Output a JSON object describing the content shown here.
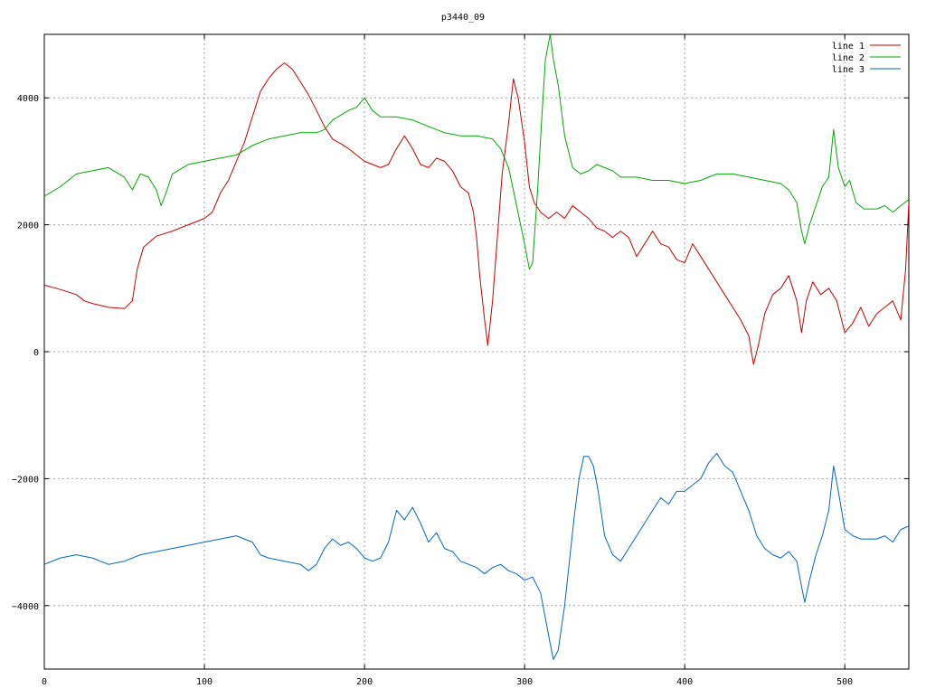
{
  "chart_data": {
    "type": "line",
    "title": "p3440_09",
    "xlabel": "",
    "ylabel": "",
    "xlim": [
      0,
      540
    ],
    "ylim": [
      -5000,
      5000
    ],
    "x_ticks": [
      0,
      100,
      200,
      300,
      400,
      500
    ],
    "y_ticks": [
      4000,
      2000,
      0,
      -2000,
      -4000
    ],
    "grid": true,
    "legend_position": "top-right",
    "series": [
      {
        "name": "line 1",
        "color": "#cc0000",
        "points": [
          [
            0,
            1050
          ],
          [
            10,
            980
          ],
          [
            20,
            900
          ],
          [
            25,
            800
          ],
          [
            30,
            760
          ],
          [
            40,
            700
          ],
          [
            50,
            680
          ],
          [
            55,
            800
          ],
          [
            58,
            1300
          ],
          [
            62,
            1650
          ],
          [
            70,
            1820
          ],
          [
            80,
            1900
          ],
          [
            90,
            2000
          ],
          [
            100,
            2100
          ],
          [
            105,
            2200
          ],
          [
            110,
            2500
          ],
          [
            115,
            2700
          ],
          [
            120,
            3000
          ],
          [
            125,
            3300
          ],
          [
            130,
            3700
          ],
          [
            135,
            4100
          ],
          [
            140,
            4300
          ],
          [
            145,
            4450
          ],
          [
            150,
            4550
          ],
          [
            155,
            4450
          ],
          [
            160,
            4250
          ],
          [
            165,
            4050
          ],
          [
            170,
            3800
          ],
          [
            175,
            3550
          ],
          [
            180,
            3350
          ],
          [
            185,
            3280
          ],
          [
            190,
            3200
          ],
          [
            195,
            3100
          ],
          [
            200,
            3000
          ],
          [
            205,
            2950
          ],
          [
            210,
            2900
          ],
          [
            215,
            2950
          ],
          [
            220,
            3200
          ],
          [
            225,
            3400
          ],
          [
            230,
            3200
          ],
          [
            235,
            2950
          ],
          [
            240,
            2900
          ],
          [
            245,
            3050
          ],
          [
            250,
            3000
          ],
          [
            255,
            2850
          ],
          [
            260,
            2600
          ],
          [
            265,
            2500
          ],
          [
            268,
            2200
          ],
          [
            270,
            1800
          ],
          [
            272,
            1200
          ],
          [
            275,
            500
          ],
          [
            277,
            100
          ],
          [
            280,
            800
          ],
          [
            283,
            1800
          ],
          [
            286,
            2800
          ],
          [
            290,
            3600
          ],
          [
            293,
            4300
          ],
          [
            296,
            4000
          ],
          [
            300,
            3300
          ],
          [
            303,
            2600
          ],
          [
            306,
            2350
          ],
          [
            310,
            2200
          ],
          [
            315,
            2100
          ],
          [
            320,
            2200
          ],
          [
            325,
            2100
          ],
          [
            330,
            2300
          ],
          [
            335,
            2200
          ],
          [
            340,
            2100
          ],
          [
            345,
            1950
          ],
          [
            350,
            1900
          ],
          [
            355,
            1800
          ],
          [
            360,
            1900
          ],
          [
            365,
            1800
          ],
          [
            370,
            1500
          ],
          [
            375,
            1700
          ],
          [
            380,
            1900
          ],
          [
            385,
            1700
          ],
          [
            390,
            1650
          ],
          [
            395,
            1450
          ],
          [
            400,
            1400
          ],
          [
            405,
            1700
          ],
          [
            410,
            1500
          ],
          [
            415,
            1300
          ],
          [
            420,
            1100
          ],
          [
            425,
            900
          ],
          [
            430,
            700
          ],
          [
            435,
            500
          ],
          [
            440,
            250
          ],
          [
            443,
            -200
          ],
          [
            446,
            100
          ],
          [
            450,
            600
          ],
          [
            455,
            900
          ],
          [
            460,
            1000
          ],
          [
            465,
            1200
          ],
          [
            470,
            800
          ],
          [
            473,
            300
          ],
          [
            476,
            800
          ],
          [
            480,
            1100
          ],
          [
            485,
            900
          ],
          [
            490,
            1000
          ],
          [
            495,
            800
          ],
          [
            500,
            300
          ],
          [
            505,
            450
          ],
          [
            510,
            700
          ],
          [
            515,
            400
          ],
          [
            520,
            600
          ],
          [
            525,
            700
          ],
          [
            530,
            800
          ],
          [
            535,
            500
          ],
          [
            538,
            1300
          ],
          [
            540,
            2350
          ]
        ]
      },
      {
        "name": "line 2",
        "color": "#00aa00",
        "points": [
          [
            0,
            2450
          ],
          [
            10,
            2600
          ],
          [
            20,
            2800
          ],
          [
            30,
            2850
          ],
          [
            40,
            2900
          ],
          [
            50,
            2750
          ],
          [
            55,
            2550
          ],
          [
            60,
            2800
          ],
          [
            65,
            2750
          ],
          [
            70,
            2550
          ],
          [
            73,
            2300
          ],
          [
            76,
            2500
          ],
          [
            80,
            2800
          ],
          [
            90,
            2950
          ],
          [
            100,
            3000
          ],
          [
            110,
            3050
          ],
          [
            120,
            3100
          ],
          [
            130,
            3250
          ],
          [
            140,
            3350
          ],
          [
            150,
            3400
          ],
          [
            160,
            3450
          ],
          [
            170,
            3450
          ],
          [
            175,
            3500
          ],
          [
            180,
            3650
          ],
          [
            190,
            3800
          ],
          [
            195,
            3850
          ],
          [
            200,
            4000
          ],
          [
            205,
            3800
          ],
          [
            210,
            3700
          ],
          [
            220,
            3700
          ],
          [
            230,
            3650
          ],
          [
            240,
            3550
          ],
          [
            250,
            3450
          ],
          [
            260,
            3400
          ],
          [
            270,
            3400
          ],
          [
            280,
            3350
          ],
          [
            285,
            3200
          ],
          [
            290,
            2900
          ],
          [
            295,
            2300
          ],
          [
            300,
            1700
          ],
          [
            303,
            1300
          ],
          [
            305,
            1400
          ],
          [
            308,
            2500
          ],
          [
            311,
            3800
          ],
          [
            313,
            4600
          ],
          [
            316,
            5000
          ],
          [
            318,
            4600
          ],
          [
            321,
            4200
          ],
          [
            325,
            3400
          ],
          [
            330,
            2900
          ],
          [
            335,
            2800
          ],
          [
            340,
            2850
          ],
          [
            345,
            2950
          ],
          [
            350,
            2900
          ],
          [
            355,
            2850
          ],
          [
            360,
            2750
          ],
          [
            370,
            2750
          ],
          [
            380,
            2700
          ],
          [
            390,
            2700
          ],
          [
            400,
            2650
          ],
          [
            410,
            2700
          ],
          [
            420,
            2800
          ],
          [
            430,
            2800
          ],
          [
            440,
            2750
          ],
          [
            450,
            2700
          ],
          [
            460,
            2650
          ],
          [
            465,
            2550
          ],
          [
            470,
            2350
          ],
          [
            473,
            1900
          ],
          [
            475,
            1700
          ],
          [
            478,
            2000
          ],
          [
            482,
            2300
          ],
          [
            486,
            2600
          ],
          [
            490,
            2750
          ],
          [
            493,
            3500
          ],
          [
            496,
            2900
          ],
          [
            500,
            2600
          ],
          [
            503,
            2700
          ],
          [
            507,
            2350
          ],
          [
            512,
            2250
          ],
          [
            520,
            2250
          ],
          [
            525,
            2300
          ],
          [
            530,
            2200
          ],
          [
            535,
            2300
          ],
          [
            540,
            2400
          ]
        ]
      },
      {
        "name": "line 3",
        "color": "#0066cc",
        "points": [
          [
            0,
            -3350
          ],
          [
            10,
            -3250
          ],
          [
            20,
            -3200
          ],
          [
            30,
            -3250
          ],
          [
            40,
            -3350
          ],
          [
            50,
            -3300
          ],
          [
            60,
            -3200
          ],
          [
            70,
            -3150
          ],
          [
            80,
            -3100
          ],
          [
            90,
            -3050
          ],
          [
            100,
            -3000
          ],
          [
            110,
            -2950
          ],
          [
            120,
            -2900
          ],
          [
            130,
            -3000
          ],
          [
            135,
            -3200
          ],
          [
            140,
            -3250
          ],
          [
            150,
            -3300
          ],
          [
            160,
            -3350
          ],
          [
            165,
            -3450
          ],
          [
            170,
            -3350
          ],
          [
            175,
            -3100
          ],
          [
            180,
            -2950
          ],
          [
            185,
            -3050
          ],
          [
            190,
            -3000
          ],
          [
            195,
            -3100
          ],
          [
            200,
            -3250
          ],
          [
            205,
            -3300
          ],
          [
            210,
            -3250
          ],
          [
            215,
            -3000
          ],
          [
            220,
            -2500
          ],
          [
            225,
            -2650
          ],
          [
            230,
            -2450
          ],
          [
            235,
            -2700
          ],
          [
            240,
            -3000
          ],
          [
            245,
            -2850
          ],
          [
            250,
            -3100
          ],
          [
            255,
            -3150
          ],
          [
            260,
            -3300
          ],
          [
            265,
            -3350
          ],
          [
            270,
            -3400
          ],
          [
            275,
            -3500
          ],
          [
            280,
            -3400
          ],
          [
            285,
            -3350
          ],
          [
            290,
            -3450
          ],
          [
            295,
            -3500
          ],
          [
            300,
            -3600
          ],
          [
            305,
            -3550
          ],
          [
            310,
            -3800
          ],
          [
            313,
            -4200
          ],
          [
            316,
            -4600
          ],
          [
            318,
            -4850
          ],
          [
            321,
            -4700
          ],
          [
            325,
            -4000
          ],
          [
            328,
            -3300
          ],
          [
            331,
            -2600
          ],
          [
            334,
            -2000
          ],
          [
            337,
            -1650
          ],
          [
            340,
            -1650
          ],
          [
            343,
            -1800
          ],
          [
            346,
            -2200
          ],
          [
            350,
            -2900
          ],
          [
            355,
            -3200
          ],
          [
            360,
            -3300
          ],
          [
            365,
            -3100
          ],
          [
            370,
            -2900
          ],
          [
            375,
            -2700
          ],
          [
            380,
            -2500
          ],
          [
            385,
            -2300
          ],
          [
            390,
            -2400
          ],
          [
            395,
            -2200
          ],
          [
            400,
            -2200
          ],
          [
            405,
            -2100
          ],
          [
            410,
            -2000
          ],
          [
            415,
            -1750
          ],
          [
            420,
            -1600
          ],
          [
            425,
            -1800
          ],
          [
            430,
            -1900
          ],
          [
            435,
            -2200
          ],
          [
            440,
            -2500
          ],
          [
            445,
            -2900
          ],
          [
            450,
            -3100
          ],
          [
            455,
            -3200
          ],
          [
            460,
            -3250
          ],
          [
            465,
            -3150
          ],
          [
            470,
            -3300
          ],
          [
            473,
            -3700
          ],
          [
            475,
            -3950
          ],
          [
            478,
            -3600
          ],
          [
            482,
            -3200
          ],
          [
            486,
            -2900
          ],
          [
            490,
            -2500
          ],
          [
            493,
            -1800
          ],
          [
            496,
            -2200
          ],
          [
            500,
            -2800
          ],
          [
            505,
            -2900
          ],
          [
            510,
            -2950
          ],
          [
            520,
            -2950
          ],
          [
            525,
            -2900
          ],
          [
            530,
            -3000
          ],
          [
            535,
            -2800
          ],
          [
            540,
            -2750
          ]
        ]
      }
    ]
  }
}
